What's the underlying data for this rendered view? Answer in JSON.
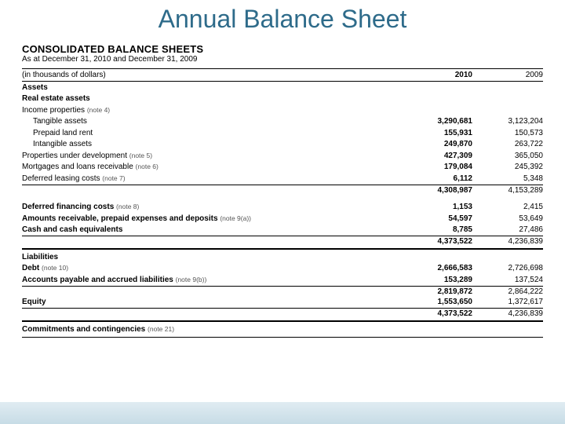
{
  "slide": {
    "title": "Annual Balance Sheet"
  },
  "sheet": {
    "heading": "CONSOLIDATED BALANCE SHEETS",
    "subheading": "As at December 31, 2010 and December 31, 2009",
    "units_label": "(in thousands of dollars)",
    "year_cols": {
      "a": "2010",
      "b": "2009"
    },
    "sections": {
      "assets_hdr": "Assets",
      "real_estate_hdr": "Real estate assets",
      "income_properties": {
        "label": "Income properties",
        "note": "(note 4)"
      },
      "tangible": {
        "label": "Tangible assets",
        "a": "3,290,681",
        "b": "3,123,204"
      },
      "prepaid_land": {
        "label": "Prepaid land rent",
        "a": "155,931",
        "b": "150,573"
      },
      "intangible": {
        "label": "Intangible assets",
        "a": "249,870",
        "b": "263,722"
      },
      "prop_dev": {
        "label": "Properties under development",
        "note": "(note 5)",
        "a": "427,309",
        "b": "365,050"
      },
      "mortgages": {
        "label": "Mortgages and loans receivable",
        "note": "(note 6)",
        "a": "179,084",
        "b": "245,392"
      },
      "def_leasing": {
        "label": "Deferred leasing costs",
        "note": "(note 7)",
        "a": "6,112",
        "b": "5,348"
      },
      "assets_sub1": {
        "a": "4,308,987",
        "b": "4,153,289"
      },
      "def_financing": {
        "label": "Deferred financing costs",
        "note": "(note 8)",
        "a": "1,153",
        "b": "2,415"
      },
      "amounts_rec": {
        "label": "Amounts receivable, prepaid expenses and deposits",
        "note": "(note 9(a))",
        "a": "54,597",
        "b": "53,649"
      },
      "cash": {
        "label": "Cash and cash equivalents",
        "a": "8,785",
        "b": "27,486"
      },
      "assets_total": {
        "a": "4,373,522",
        "b": "4,236,839"
      },
      "liab_hdr": "Liabilities",
      "debt": {
        "label": "Debt",
        "note": "(note 10)",
        "a": "2,666,583",
        "b": "2,726,698"
      },
      "ap": {
        "label": "Accounts payable and accrued liabilities",
        "note": "(note 9(b))",
        "a": "153,289",
        "b": "137,524"
      },
      "liab_total": {
        "a": "2,819,872",
        "b": "2,864,222"
      },
      "equity": {
        "label": "Equity",
        "a": "1,553,650",
        "b": "1,372,617"
      },
      "grand_total": {
        "a": "4,373,522",
        "b": "4,236,839"
      },
      "commitments": {
        "label": "Commitments and contingencies",
        "note": "(note 21)"
      }
    }
  },
  "colors": {
    "title": "#2e6b8a",
    "footer_top": "#e0ecf2",
    "footer_bottom": "#c7dce6"
  }
}
